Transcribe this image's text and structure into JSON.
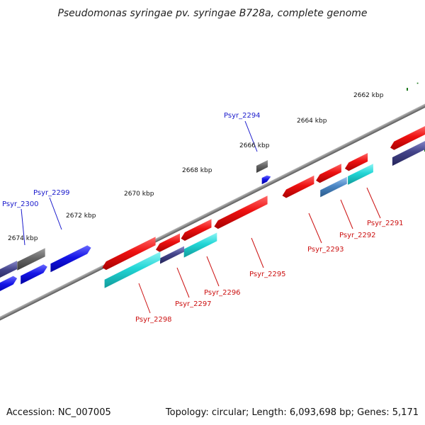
{
  "title": "Pseudomonas syringae pv. syringae B728a, complete genome",
  "footer": {
    "accession": "Accession: NC_007005",
    "summary": "Topology: circular; Length: 6,093,698 bp; Genes: 5,171"
  },
  "scale_labels": [
    "2662 kbp",
    "2664 kbp",
    "2666 kbp",
    "2668 kbp",
    "2670 kbp",
    "2672 kbp",
    "2674 kbp"
  ],
  "gene_labels": {
    "Psyr_2291": "Psyr_2291",
    "Psyr_2292": "Psyr_2292",
    "Psyr_2293": "Psyr_2293",
    "Psyr_2294": "Psyr_2294",
    "Psyr_2295": "Psyr_2295",
    "Psyr_2296": "Psyr_2296",
    "Psyr_2297": "Psyr_2297",
    "Psyr_2298": "Psyr_2298",
    "Psyr_2299": "Psyr_2299",
    "Psyr_2300": "Psyr_2300"
  },
  "colors": {
    "backbone": "#8a8a8a",
    "tick": "#1e7a1e",
    "red": "#ee1111",
    "blue": "#1414e6",
    "cyan": "#22d6d6",
    "gray": "#666666",
    "navy": "#44448a",
    "steel": "#4a86c4",
    "label_blue": "#1a1acc",
    "label_red": "#cc1111"
  }
}
